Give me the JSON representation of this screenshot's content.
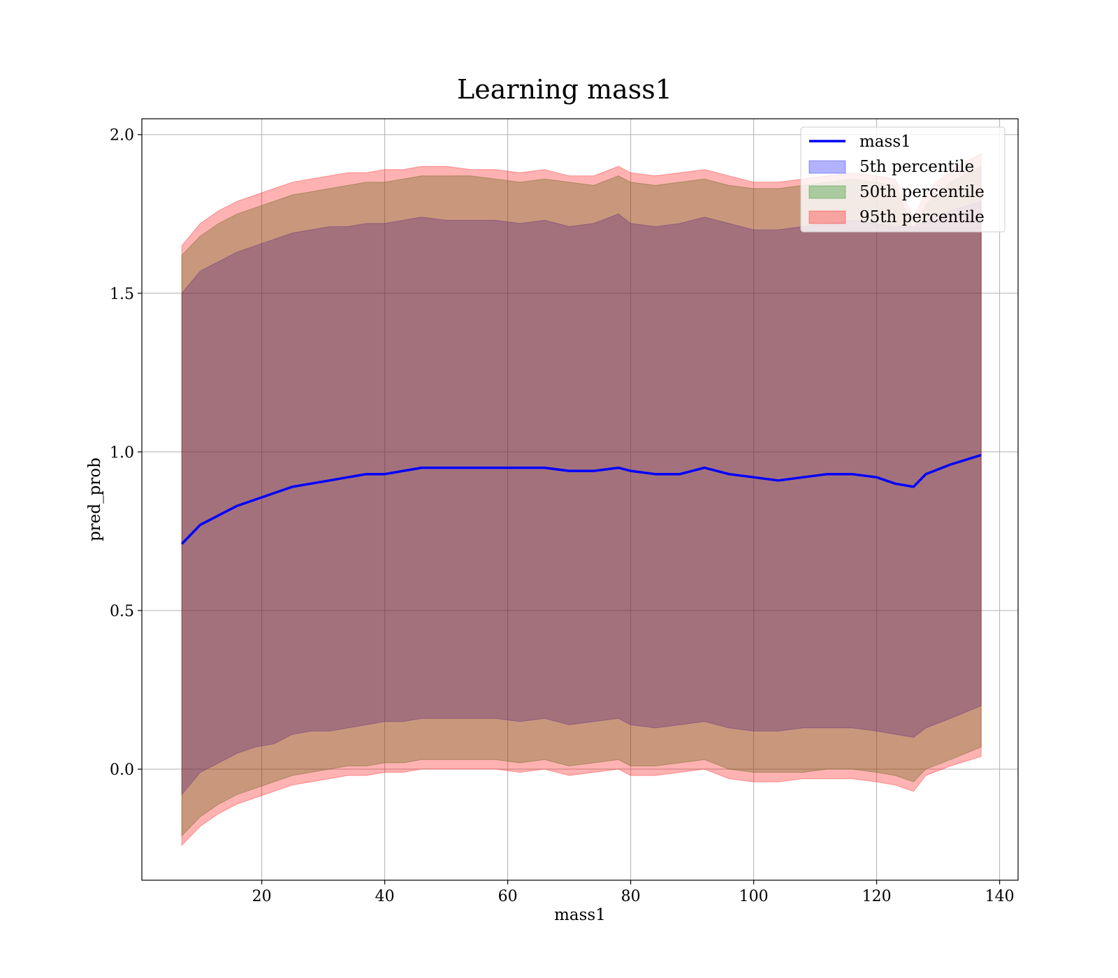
{
  "chart_data": {
    "type": "area",
    "title": "Learning mass1",
    "xlabel": "mass1",
    "ylabel": "pred_prob",
    "xlim": [
      0.5,
      143
    ],
    "ylim": [
      -0.35,
      2.05
    ],
    "xticks": [
      20,
      40,
      60,
      80,
      100,
      120,
      140
    ],
    "yticks": [
      0.0,
      0.5,
      1.0,
      1.5,
      2.0
    ],
    "xtick_labels": [
      "20",
      "40",
      "60",
      "80",
      "100",
      "120",
      "140"
    ],
    "ytick_labels": [
      "0.0",
      "0.5",
      "1.0",
      "1.5",
      "2.0"
    ],
    "grid": true,
    "legend_position": "top-right",
    "legend": [
      {
        "label": "mass1",
        "kind": "line",
        "color": "#0000ff"
      },
      {
        "label": "5th percentile",
        "kind": "patch",
        "color": "#0000ff"
      },
      {
        "label": "50th percentile",
        "kind": "patch",
        "color": "#008000"
      },
      {
        "label": "95th percentile",
        "kind": "patch",
        "color": "#ff0000"
      }
    ],
    "x": [
      7,
      10,
      13,
      16,
      19,
      22,
      25,
      28,
      31,
      34,
      37,
      40,
      43,
      46,
      50,
      54,
      58,
      62,
      66,
      70,
      74,
      78,
      80,
      84,
      88,
      92,
      96,
      100,
      104,
      108,
      112,
      116,
      120,
      123,
      126,
      128,
      132,
      137
    ],
    "series": [
      {
        "name": "mass1",
        "color": "#0000ff",
        "values": [
          0.71,
          0.77,
          0.8,
          0.83,
          0.85,
          0.87,
          0.89,
          0.9,
          0.91,
          0.92,
          0.93,
          0.93,
          0.94,
          0.95,
          0.95,
          0.95,
          0.95,
          0.95,
          0.95,
          0.94,
          0.94,
          0.95,
          0.94,
          0.93,
          0.93,
          0.95,
          0.93,
          0.92,
          0.91,
          0.92,
          0.93,
          0.93,
          0.92,
          0.9,
          0.89,
          0.93,
          0.96,
          0.99
        ]
      },
      {
        "name": "5th percentile",
        "color": "#0000ff",
        "upper": [
          1.5,
          1.57,
          1.6,
          1.63,
          1.65,
          1.67,
          1.69,
          1.7,
          1.71,
          1.71,
          1.72,
          1.72,
          1.73,
          1.74,
          1.73,
          1.73,
          1.73,
          1.72,
          1.73,
          1.71,
          1.72,
          1.75,
          1.72,
          1.71,
          1.72,
          1.74,
          1.72,
          1.7,
          1.7,
          1.71,
          1.72,
          1.73,
          1.72,
          1.71,
          1.71,
          1.73,
          1.76,
          1.79
        ],
        "lower": [
          -0.08,
          -0.01,
          0.02,
          0.05,
          0.07,
          0.08,
          0.11,
          0.12,
          0.12,
          0.13,
          0.14,
          0.15,
          0.15,
          0.16,
          0.16,
          0.16,
          0.16,
          0.15,
          0.16,
          0.14,
          0.15,
          0.16,
          0.14,
          0.13,
          0.14,
          0.15,
          0.13,
          0.12,
          0.12,
          0.13,
          0.13,
          0.13,
          0.12,
          0.11,
          0.1,
          0.13,
          0.16,
          0.2
        ]
      },
      {
        "name": "50th percentile",
        "color": "#008000",
        "upper": [
          1.62,
          1.68,
          1.72,
          1.75,
          1.77,
          1.79,
          1.81,
          1.82,
          1.83,
          1.84,
          1.85,
          1.85,
          1.86,
          1.87,
          1.87,
          1.87,
          1.86,
          1.85,
          1.86,
          1.85,
          1.84,
          1.87,
          1.85,
          1.84,
          1.85,
          1.86,
          1.84,
          1.83,
          1.83,
          1.84,
          1.85,
          1.86,
          1.85,
          1.84,
          1.7,
          1.78,
          1.85,
          1.9
        ],
        "lower": [
          -0.21,
          -0.15,
          -0.11,
          -0.08,
          -0.06,
          -0.04,
          -0.02,
          -0.01,
          0.0,
          0.01,
          0.01,
          0.02,
          0.02,
          0.03,
          0.03,
          0.03,
          0.03,
          0.02,
          0.03,
          0.01,
          0.02,
          0.03,
          0.01,
          0.01,
          0.02,
          0.03,
          0.0,
          -0.01,
          -0.01,
          -0.01,
          0.0,
          0.0,
          -0.01,
          -0.02,
          -0.04,
          0.0,
          0.03,
          0.07
        ]
      },
      {
        "name": "95th percentile",
        "color": "#ff0000",
        "upper": [
          1.65,
          1.72,
          1.76,
          1.79,
          1.81,
          1.83,
          1.85,
          1.86,
          1.87,
          1.88,
          1.88,
          1.89,
          1.89,
          1.9,
          1.9,
          1.89,
          1.89,
          1.88,
          1.89,
          1.87,
          1.87,
          1.9,
          1.88,
          1.87,
          1.88,
          1.89,
          1.87,
          1.85,
          1.85,
          1.86,
          1.87,
          1.88,
          1.87,
          1.86,
          1.74,
          1.82,
          1.89,
          1.94
        ],
        "lower": [
          -0.24,
          -0.18,
          -0.14,
          -0.11,
          -0.09,
          -0.07,
          -0.05,
          -0.04,
          -0.03,
          -0.02,
          -0.02,
          -0.01,
          -0.01,
          0.0,
          0.0,
          0.0,
          0.0,
          -0.01,
          0.0,
          -0.02,
          -0.01,
          0.0,
          -0.02,
          -0.02,
          -0.01,
          0.0,
          -0.03,
          -0.04,
          -0.04,
          -0.03,
          -0.03,
          -0.03,
          -0.04,
          -0.05,
          -0.07,
          -0.02,
          0.01,
          0.04
        ]
      }
    ]
  }
}
